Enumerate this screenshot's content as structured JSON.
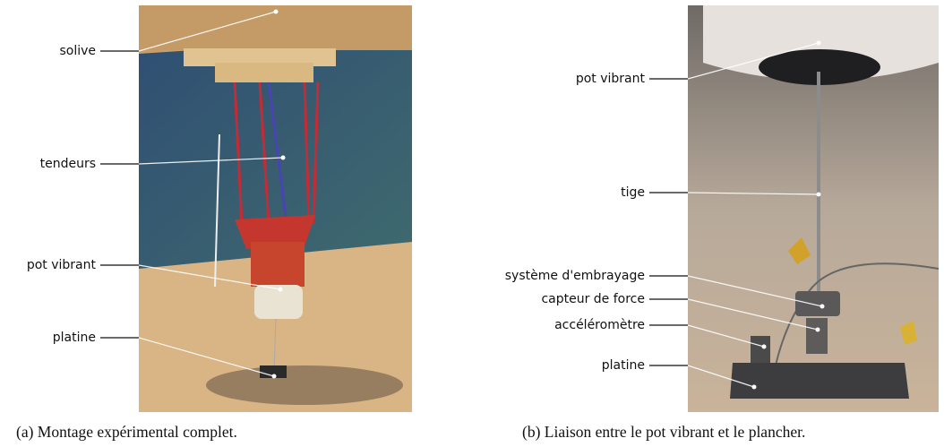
{
  "panels": [
    {
      "caption": "(a) Montage expérimental complet.",
      "labels": [
        "solive",
        "tendeurs",
        "pot vibrant",
        "platine"
      ]
    },
    {
      "caption": "(b) Liaison entre le pot vibrant et le plancher.",
      "labels": [
        "pot vibrant",
        "tige",
        "système d'embrayage",
        "capteur de force",
        "accéléromètre",
        "platine"
      ]
    }
  ]
}
